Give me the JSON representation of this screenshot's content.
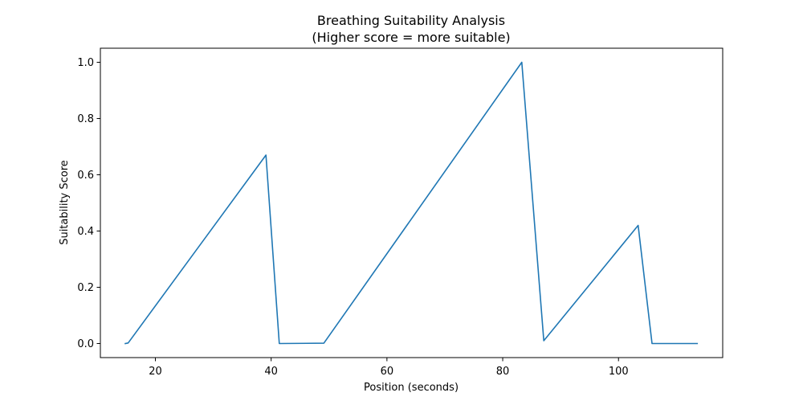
{
  "chart_data": {
    "type": "line",
    "title": "Breathing Suitability Analysis",
    "subtitle": "(Higher score = more suitable)",
    "xlabel": "Position (seconds)",
    "ylabel": "Suitability Score",
    "xlim": [
      10.5,
      118
    ],
    "ylim": [
      -0.05,
      1.05
    ],
    "xticks": [
      20,
      40,
      60,
      80,
      100
    ],
    "xtick_labels": [
      "20",
      "40",
      "60",
      "80",
      "100"
    ],
    "yticks": [
      0.0,
      0.2,
      0.4,
      0.6,
      0.8,
      1.0
    ],
    "ytick_labels": [
      "0.0",
      "0.2",
      "0.4",
      "0.6",
      "0.8",
      "1.0"
    ],
    "grid": false,
    "series": [
      {
        "color": "#1f77b4",
        "x": [
          14.8,
          15.3,
          39.1,
          41.4,
          49.1,
          83.3,
          87.1,
          103.4,
          105.8,
          113.6
        ],
        "y": [
          0.0,
          0.002,
          0.67,
          0.0,
          0.001,
          1.0,
          0.01,
          0.42,
          0.0,
          0.0
        ]
      }
    ]
  }
}
